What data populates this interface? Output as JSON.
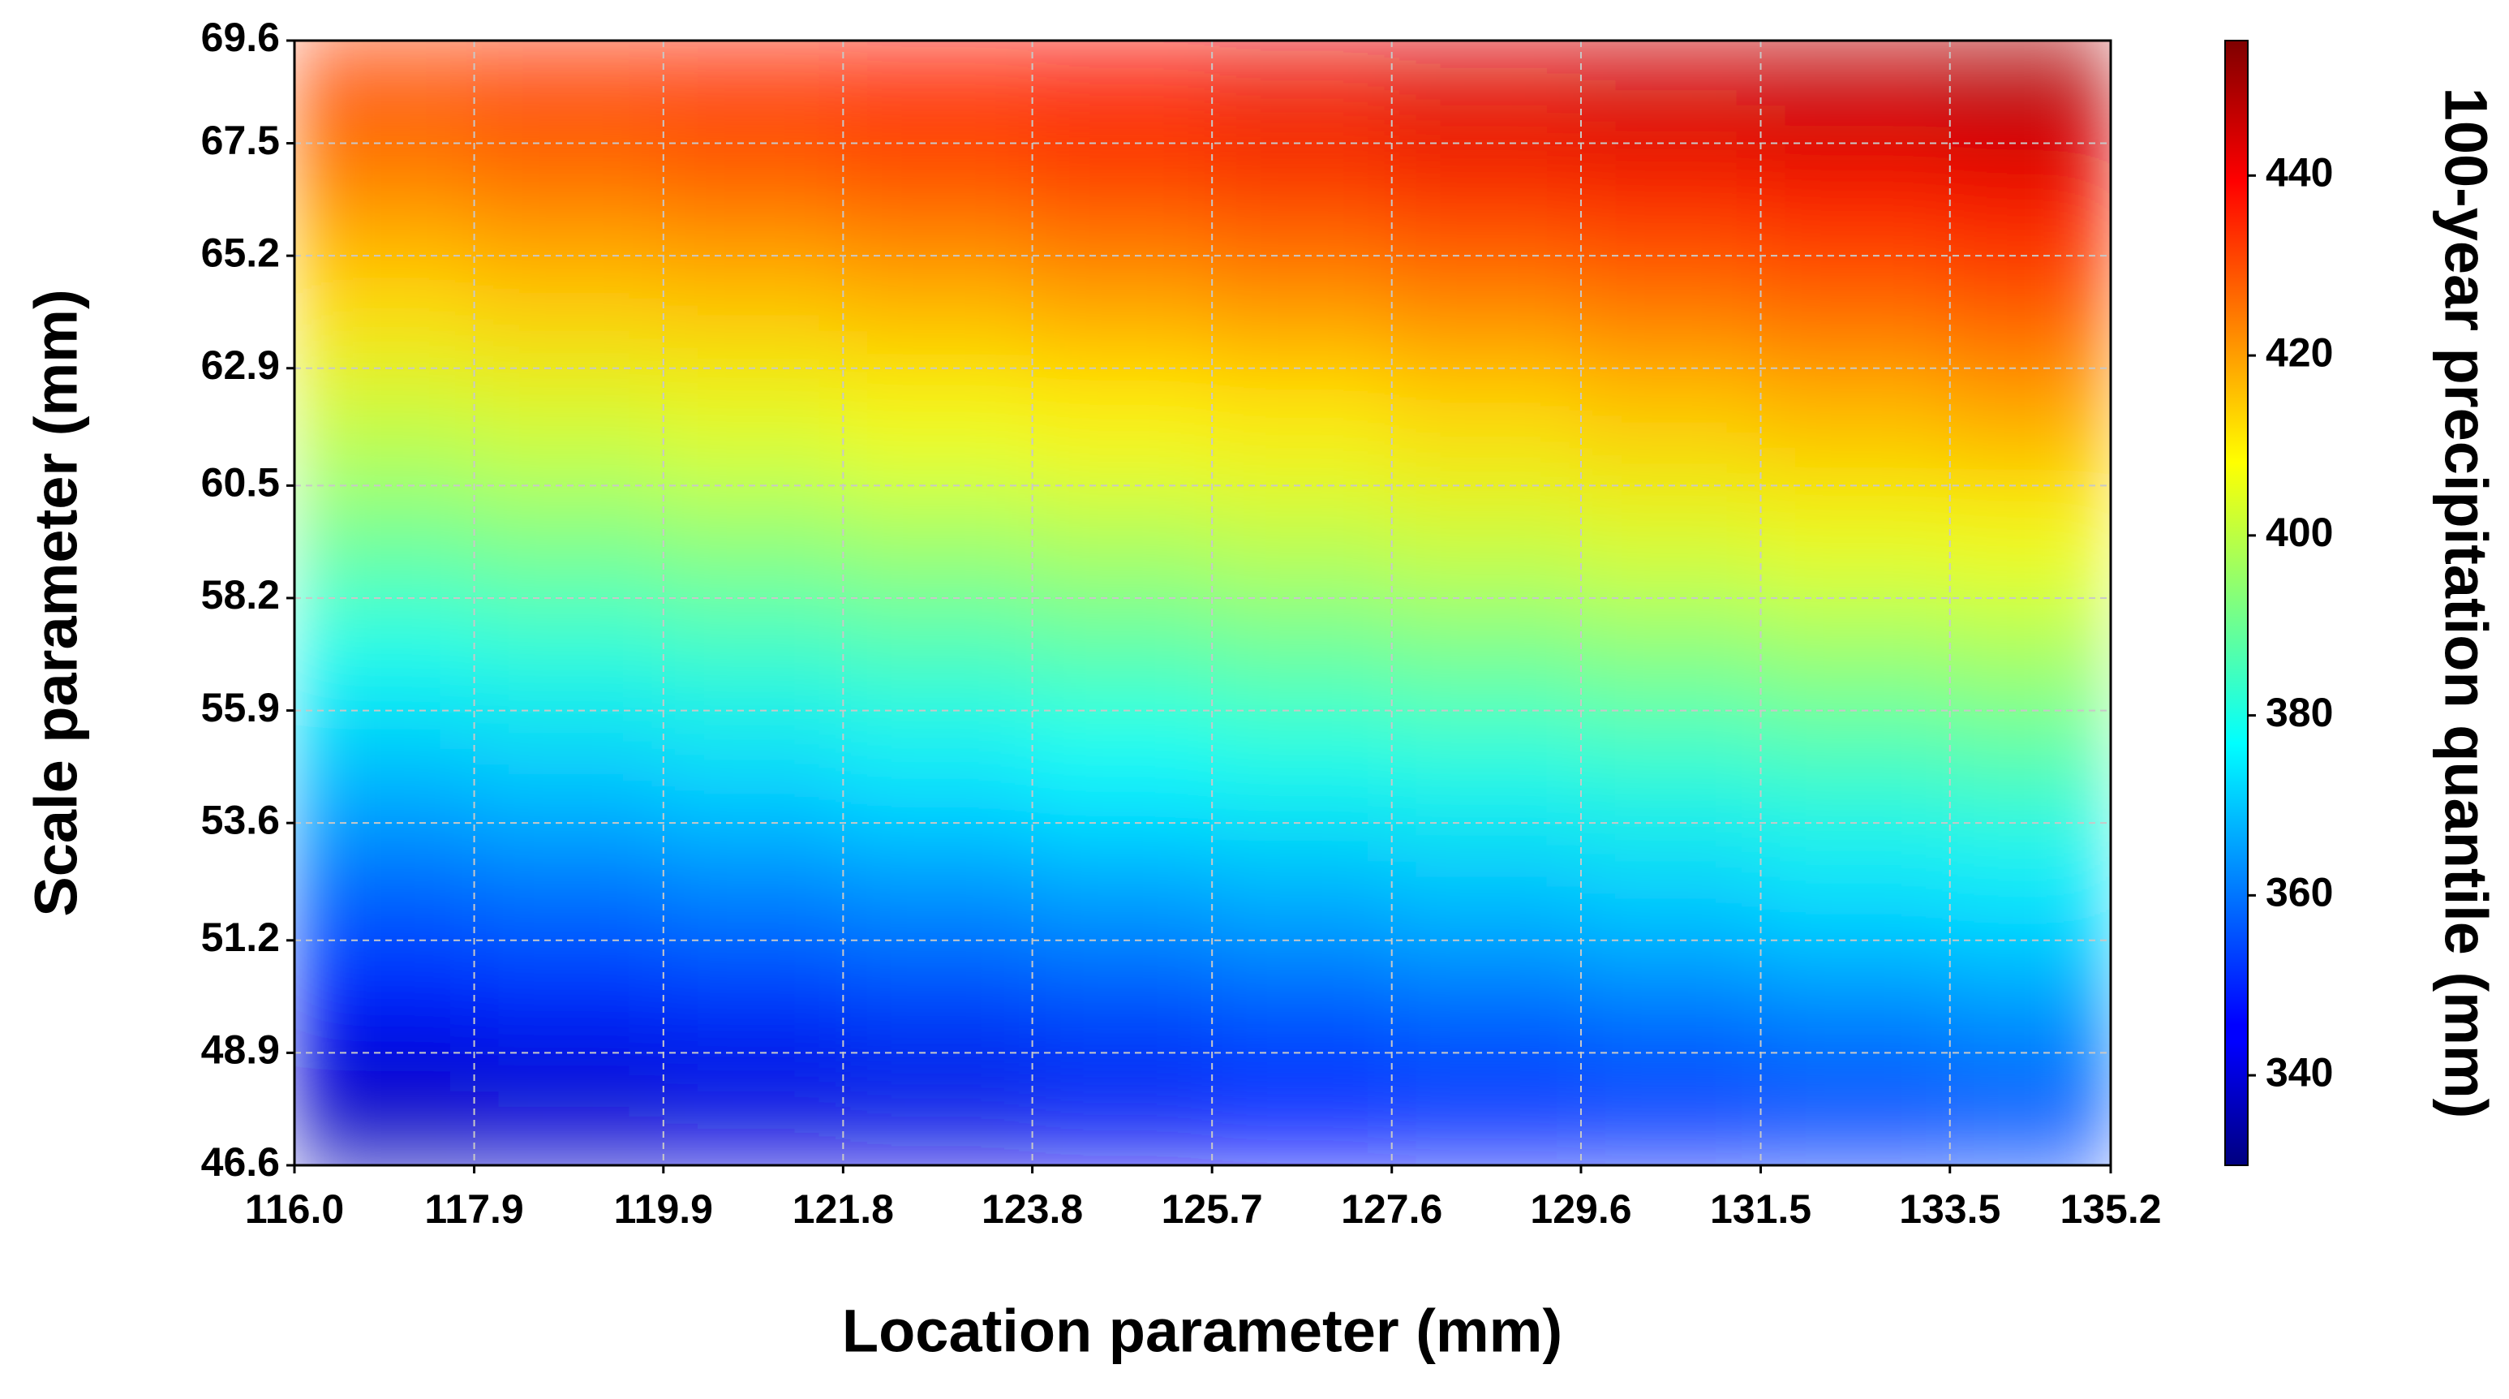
{
  "chart_data": {
    "type": "heatmap",
    "x_label": "Location parameter (mm)",
    "y_label": "Scale parameter (mm)",
    "colorbar_label": "100-year precipitation quantile (mm)",
    "colormap": "jet",
    "grid": true,
    "x": [
      116.0,
      117.9,
      119.9,
      121.8,
      123.8,
      125.7,
      127.6,
      129.6,
      131.5,
      133.5,
      135.2
    ],
    "y": [
      46.6,
      48.9,
      51.2,
      53.6,
      55.9,
      58.2,
      60.5,
      62.9,
      65.2,
      67.5,
      69.6
    ],
    "z": [
      [
        337,
        339,
        341,
        342,
        344,
        346,
        348,
        350,
        352,
        354
      ],
      [
        347,
        349,
        351,
        353,
        355,
        357,
        359,
        361,
        363,
        365
      ],
      [
        358,
        360,
        362,
        364,
        366,
        368,
        370,
        372,
        374,
        375
      ],
      [
        369,
        371,
        373,
        375,
        377,
        379,
        380,
        382,
        384,
        386
      ],
      [
        379,
        381,
        383,
        385,
        387,
        389,
        391,
        393,
        395,
        397
      ],
      [
        390,
        392,
        394,
        396,
        398,
        400,
        402,
        404,
        406,
        407
      ],
      [
        401,
        403,
        405,
        407,
        409,
        410,
        412,
        414,
        416,
        418
      ],
      [
        412,
        414,
        415,
        417,
        419,
        421,
        423,
        425,
        427,
        429
      ],
      [
        422,
        424,
        426,
        428,
        430,
        432,
        434,
        436,
        438,
        440
      ],
      [
        432,
        434,
        436,
        438,
        440,
        442,
        444,
        446,
        448,
        450
      ]
    ],
    "xlim": [
      116.0,
      135.2
    ],
    "ylim": [
      46.6,
      69.6
    ],
    "zlim": [
      330,
      455
    ],
    "xticks": [
      {
        "value": 116.0,
        "label": "116.0"
      },
      117.9,
      119.9,
      121.8,
      123.8,
      125.7,
      127.6,
      129.6,
      131.5,
      133.5,
      135.2
    ],
    "yticks": [
      46.6,
      48.9,
      51.2,
      53.6,
      55.9,
      58.2,
      60.5,
      62.9,
      65.2,
      67.5,
      69.6
    ],
    "zticks": [
      340,
      360,
      380,
      400,
      420,
      440
    ]
  }
}
